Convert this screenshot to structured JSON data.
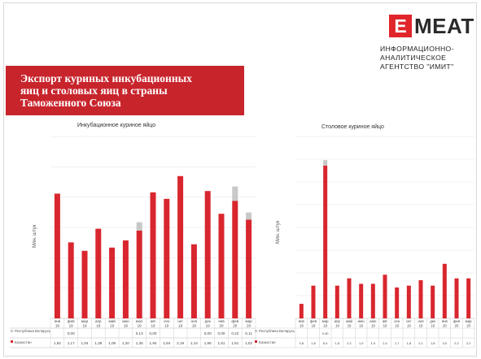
{
  "header": {
    "title_lines": [
      "Экспорт куриных инкубационных",
      "яиц и столовых яиц в страны",
      "Таможенного Союза"
    ],
    "logo_letter": "E",
    "logo_word": "MEAT",
    "agency_lines": [
      "ИНФОРМАЦИОННО-",
      "АНАЛИТИЧЕСКОЕ",
      "АГЕНТСТВО \"ИМИТ\""
    ]
  },
  "colors": {
    "kazakhstan": "#d9262e",
    "belarus": "#c8c8c8",
    "brand": "#c8242c"
  },
  "chart_data": [
    {
      "type": "bar",
      "stacked": true,
      "title": "Инкубационное куриное яйцо",
      "ylabel": "Млн. штук",
      "categories": [
        "янв 19",
        "фев 19",
        "мар 19",
        "апр 19",
        "май 19",
        "июн 19",
        "июл 19",
        "авг 19",
        "сен 19",
        "окт 19",
        "ноя 19",
        "дек 19",
        "янв 20",
        "фев 20",
        "мар 20"
      ],
      "ylim": [
        0,
        2.8
      ],
      "grid": true,
      "series": [
        {
          "name": "Республика Беларусь",
          "values": [
            0,
            0.0,
            0,
            0,
            0,
            0,
            0.13,
            0.0,
            0,
            0,
            0,
            0.0,
            0.0,
            0.22,
            0.11
          ]
        },
        {
          "name": "Казахстан",
          "values": [
            1.92,
            1.17,
            1.04,
            1.38,
            1.09,
            1.2,
            1.35,
            1.94,
            1.84,
            2.19,
            1.14,
            1.96,
            1.61,
            1.81,
            1.52
          ]
        }
      ],
      "table_labels": {
        "belarus_row": [
          "",
          "0,00",
          "",
          "",
          "",
          "",
          "0,13",
          "0,00",
          "",
          "",
          "",
          "0,00",
          "0,00",
          "0,22",
          "0,11"
        ],
        "kazakhstan_row": [
          "1,92",
          "1,17",
          "1,04",
          "1,38",
          "1,09",
          "1,20",
          "1,35",
          "1,94",
          "1,84",
          "2,19",
          "1,14",
          "1,96",
          "1,61",
          "1,81",
          "1,52"
        ]
      },
      "legend_belarus": "Республика Беларусь",
      "legend_kazakhstan": "Казахстан"
    },
    {
      "type": "bar",
      "stacked": true,
      "title": "Столовое куриное яйцо",
      "ylabel": "Млн. штук",
      "categories": [
        "янв 19",
        "фев 19",
        "мар 19",
        "апр 19",
        "май 19",
        "июн 19",
        "июл 19",
        "авг 19",
        "сен 19",
        "окт 19",
        "ноя 19",
        "дек 19",
        "янв 20",
        "фев 20",
        "мар 20"
      ],
      "ylim": [
        0,
        10
      ],
      "grid": true,
      "series": [
        {
          "name": "Республика Беларусь",
          "values": [
            0,
            0,
            0.3,
            0,
            0,
            0,
            0,
            0,
            0,
            0,
            0,
            0,
            0,
            0,
            0
          ]
        },
        {
          "name": "Казахстан",
          "values": [
            0.8,
            1.8,
            8.4,
            1.8,
            2.2,
            1.9,
            1.9,
            2.4,
            1.7,
            1.8,
            2.1,
            1.8,
            3.0,
            2.2,
            2.2
          ]
        }
      ],
      "table_labels": {
        "belarus_row": [
          "",
          "",
          "0,30",
          "",
          "",
          "",
          "",
          "",
          "",
          "",
          "",
          "",
          "",
          "",
          ""
        ],
        "kazakhstan_row": [
          "0,8",
          "1,8",
          "8,4",
          "1,8",
          "2,2",
          "1,9",
          "1,9",
          "2,4",
          "1,7",
          "1,8",
          "2,1",
          "1,8",
          "3,0",
          "2,2",
          "2,2"
        ]
      },
      "legend_belarus": "Республика Беларусь",
      "legend_kazakhstan": "Казахстан"
    }
  ]
}
